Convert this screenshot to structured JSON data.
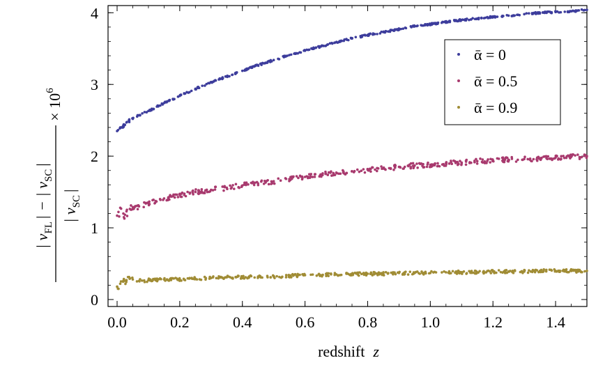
{
  "chart_data": {
    "type": "scatter",
    "xlabel": "redshift z",
    "ylabel": "(|v_FL| − |v_SC|) / |v_SC| × 10^6",
    "xlim": [
      0,
      1.5
    ],
    "ylim": [
      0,
      4.1
    ],
    "xticks": [
      "0.0",
      "0.2",
      "0.4",
      "0.6",
      "0.8",
      "1.0",
      "1.2",
      "1.4"
    ],
    "yticks": [
      "0",
      "1",
      "2",
      "3",
      "4"
    ],
    "legend_position": "top-right",
    "series": [
      {
        "name": "ᾱ = 0",
        "color": "#3d3d9c",
        "points": [
          [
            0.0,
            2.35
          ],
          [
            0.01,
            2.4
          ],
          [
            0.02,
            2.43
          ],
          [
            0.03,
            2.47
          ],
          [
            0.05,
            2.52
          ],
          [
            0.07,
            2.57
          ],
          [
            0.1,
            2.63
          ],
          [
            0.15,
            2.74
          ],
          [
            0.2,
            2.84
          ],
          [
            0.25,
            2.94
          ],
          [
            0.3,
            3.03
          ],
          [
            0.35,
            3.11
          ],
          [
            0.4,
            3.19
          ],
          [
            0.45,
            3.27
          ],
          [
            0.5,
            3.34
          ],
          [
            0.55,
            3.41
          ],
          [
            0.6,
            3.47
          ],
          [
            0.65,
            3.53
          ],
          [
            0.7,
            3.59
          ],
          [
            0.75,
            3.64
          ],
          [
            0.8,
            3.69
          ],
          [
            0.85,
            3.73
          ],
          [
            0.9,
            3.77
          ],
          [
            0.95,
            3.81
          ],
          [
            1.0,
            3.84
          ],
          [
            1.05,
            3.87
          ],
          [
            1.1,
            3.9
          ],
          [
            1.15,
            3.92
          ],
          [
            1.2,
            3.94
          ],
          [
            1.25,
            3.96
          ],
          [
            1.3,
            3.98
          ],
          [
            1.35,
            4.0
          ],
          [
            1.4,
            4.01
          ],
          [
            1.45,
            4.02
          ],
          [
            1.5,
            4.04
          ]
        ]
      },
      {
        "name": "ᾱ = 0.5",
        "color": "#a83a6e",
        "points": [
          [
            0.0,
            1.17
          ],
          [
            0.01,
            1.28
          ],
          [
            0.02,
            1.2
          ],
          [
            0.03,
            1.23
          ],
          [
            0.05,
            1.26
          ],
          [
            0.07,
            1.3
          ],
          [
            0.1,
            1.34
          ],
          [
            0.15,
            1.41
          ],
          [
            0.2,
            1.46
          ],
          [
            0.25,
            1.5
          ],
          [
            0.3,
            1.53
          ],
          [
            0.35,
            1.56
          ],
          [
            0.4,
            1.59
          ],
          [
            0.45,
            1.62
          ],
          [
            0.5,
            1.65
          ],
          [
            0.55,
            1.68
          ],
          [
            0.6,
            1.71
          ],
          [
            0.65,
            1.74
          ],
          [
            0.7,
            1.77
          ],
          [
            0.75,
            1.79
          ],
          [
            0.8,
            1.81
          ],
          [
            0.85,
            1.83
          ],
          [
            0.9,
            1.85
          ],
          [
            0.95,
            1.87
          ],
          [
            1.0,
            1.88
          ],
          [
            1.05,
            1.9
          ],
          [
            1.1,
            1.91
          ],
          [
            1.15,
            1.93
          ],
          [
            1.2,
            1.94
          ],
          [
            1.25,
            1.95
          ],
          [
            1.3,
            1.96
          ],
          [
            1.35,
            1.97
          ],
          [
            1.4,
            1.98
          ],
          [
            1.45,
            1.99
          ],
          [
            1.5,
            2.0
          ]
        ]
      },
      {
        "name": "ᾱ = 0.9",
        "color": "#a08c35",
        "points": [
          [
            0.0,
            0.18
          ],
          [
            0.01,
            0.22
          ],
          [
            0.02,
            0.25
          ],
          [
            0.03,
            0.27
          ],
          [
            0.05,
            0.28
          ],
          [
            0.07,
            0.26
          ],
          [
            0.1,
            0.27
          ],
          [
            0.15,
            0.28
          ],
          [
            0.2,
            0.28
          ],
          [
            0.25,
            0.29
          ],
          [
            0.3,
            0.3
          ],
          [
            0.35,
            0.31
          ],
          [
            0.4,
            0.31
          ],
          [
            0.45,
            0.32
          ],
          [
            0.5,
            0.32
          ],
          [
            0.55,
            0.33
          ],
          [
            0.6,
            0.34
          ],
          [
            0.65,
            0.34
          ],
          [
            0.7,
            0.35
          ],
          [
            0.75,
            0.35
          ],
          [
            0.8,
            0.36
          ],
          [
            0.85,
            0.36
          ],
          [
            0.9,
            0.37
          ],
          [
            0.95,
            0.37
          ],
          [
            1.0,
            0.37
          ],
          [
            1.05,
            0.38
          ],
          [
            1.1,
            0.38
          ],
          [
            1.15,
            0.38
          ],
          [
            1.2,
            0.39
          ],
          [
            1.25,
            0.39
          ],
          [
            1.3,
            0.39
          ],
          [
            1.35,
            0.4
          ],
          [
            1.4,
            0.4
          ],
          [
            1.45,
            0.4
          ],
          [
            1.5,
            0.4
          ]
        ]
      }
    ]
  }
}
